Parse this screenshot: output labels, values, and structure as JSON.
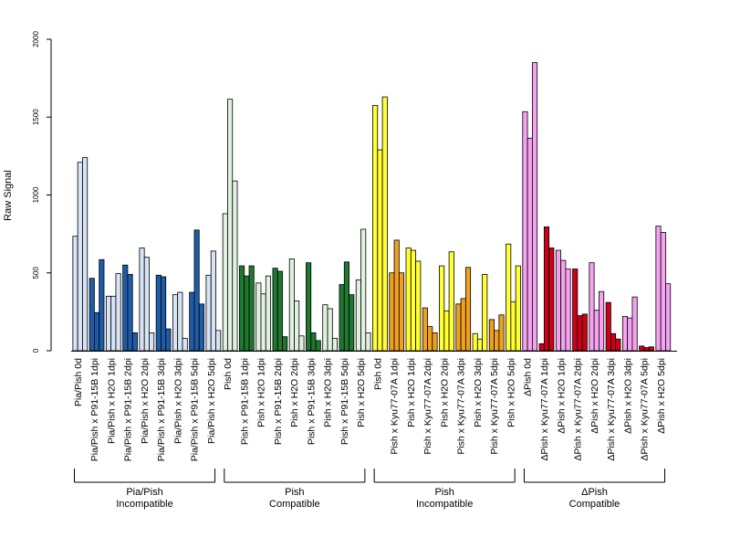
{
  "chart_data": {
    "type": "bar",
    "ylabel": "Raw Signal",
    "ylim": [
      0,
      2000
    ],
    "yticks": [
      0,
      500,
      1000,
      1500,
      2000
    ],
    "grid": false,
    "legend": "none",
    "bars_per_category": 3,
    "categories": [
      "Pia/Pish 0d",
      "Pia/Pish x P91-15B 1dpi",
      "Pia/Pish x H2O 1dpi",
      "Pia/Pish x P91-15B 2dpi",
      "Pia/Pish x H2O 2dpi",
      "Pia/Pish x P91-15B 3dpi",
      "Pia/Pish x H2O 3dpi",
      "Pia/Pish x P91-15B 5dpi",
      "Pia/Pish x H2O 5dpi",
      "Pish 0d",
      "Pish x P91-15B 1dpi",
      "Pish x H2O 1dpi",
      "Pish x P91-15B 2dpi",
      "Pish x H2O 2dpi",
      "Pish x P91-15B 3dpi",
      "Pish x H2O 3dpi",
      "Pish x P91-15B 5dpi",
      "Pish x H2O 5dpi",
      "Pish 0d",
      "Pish x Kyu77-07A 1dpi",
      "Pish x H2O 1dpi",
      "Pish x Kyu77-07A 2dpi",
      "Pish x H2O 2dpi",
      "Pish x Kyu77-07A 3dpi",
      "Pish x H2O 3dpi",
      "Pish x Kyu77-07A 5dpi",
      "Pish x H2O 5dpi",
      "ΔPish 0d",
      "ΔPish x Kyu77-07A 1dpi",
      "ΔPish x H2O 1dpi",
      "ΔPish x Kyu77-07A 2dpi",
      "ΔPish x H2O 2dpi",
      "ΔPish x Kyu77-07A 3dpi",
      "ΔPish x H2O 3dpi",
      "ΔPish x Kyu77-07A 5dpi",
      "ΔPish x H2O 5dpi"
    ],
    "values": [
      [
        735,
        1210,
        1240
      ],
      [
        465,
        245,
        585
      ],
      [
        350,
        350,
        495
      ],
      [
        550,
        490,
        115
      ],
      [
        660,
        600,
        115
      ],
      [
        485,
        475,
        140
      ],
      [
        360,
        375,
        80
      ],
      [
        375,
        775,
        300
      ],
      [
        485,
        640,
        130
      ],
      [
        880,
        1615,
        1090
      ],
      [
        545,
        480,
        545
      ],
      [
        435,
        365,
        480
      ],
      [
        530,
        510,
        90
      ],
      [
        590,
        320,
        95
      ],
      [
        565,
        115,
        65
      ],
      [
        295,
        270,
        80
      ],
      [
        425,
        570,
        360
      ],
      [
        455,
        780,
        115
      ],
      [
        1575,
        1290,
        1630
      ],
      [
        500,
        710,
        500
      ],
      [
        660,
        645,
        575
      ],
      [
        275,
        155,
        115
      ],
      [
        545,
        255,
        635
      ],
      [
        300,
        335,
        535
      ],
      [
        110,
        75,
        490
      ],
      [
        200,
        130,
        230
      ],
      [
        685,
        315,
        545
      ],
      [
        1535,
        1365,
        1850
      ],
      [
        45,
        795,
        660
      ],
      [
        645,
        580,
        525
      ],
      [
        525,
        225,
        235
      ],
      [
        565,
        260,
        380
      ],
      [
        310,
        110,
        75
      ],
      [
        220,
        210,
        345
      ],
      [
        30,
        20,
        25
      ],
      [
        800,
        760,
        430
      ]
    ],
    "category_colors": [
      "#d6e4f5",
      "#1f5ca8",
      "#d6e4f5",
      "#1f5ca8",
      "#d6e4f5",
      "#1f5ca8",
      "#d6e4f5",
      "#1f5ca8",
      "#d6e4f5",
      "#e0f2df",
      "#1e7832",
      "#e0f2df",
      "#1e7832",
      "#e0f2df",
      "#1e7832",
      "#e0f2df",
      "#1e7832",
      "#e0f2df",
      "#ffff33",
      "#f0a020",
      "#ffff33",
      "#f0a020",
      "#ffff33",
      "#f0a020",
      "#ffff33",
      "#f0a020",
      "#ffff33",
      "#f5a2f0",
      "#cc0019",
      "#f5a2f0",
      "#cc0019",
      "#f5a2f0",
      "#cc0019",
      "#f5a2f0",
      "#cc0019",
      "#f5a2f0"
    ],
    "groups": [
      {
        "line1": "Pia/Pish",
        "line2": "Incompatible",
        "start": 0,
        "end": 8
      },
      {
        "line1": "Pish",
        "line2": "Compatible",
        "start": 9,
        "end": 17
      },
      {
        "line1": "Pish",
        "line2": "Incompatible",
        "start": 18,
        "end": 26
      },
      {
        "line1": "ΔPish",
        "line2": "Compatible",
        "start": 27,
        "end": 35
      }
    ]
  }
}
